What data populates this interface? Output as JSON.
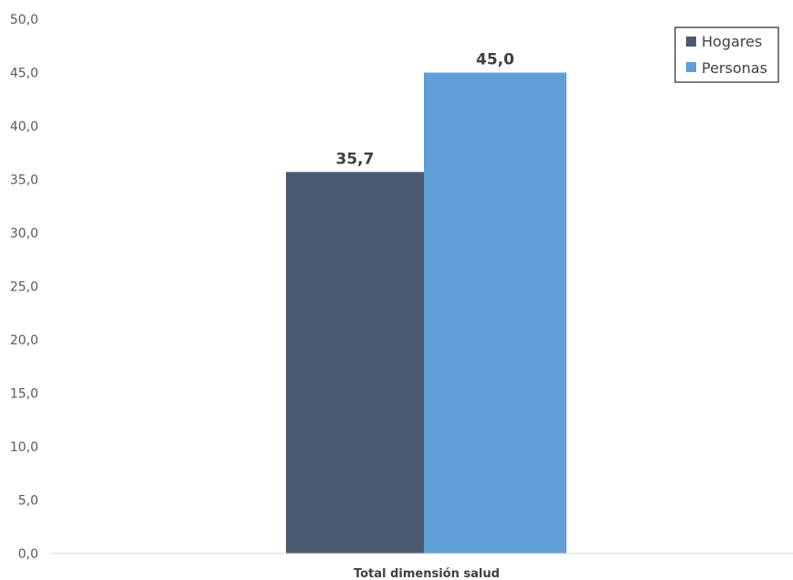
{
  "chart_data": {
    "type": "bar",
    "categories": [
      "Total dimensión salud"
    ],
    "series": [
      {
        "name": "Hogares",
        "values": [
          35.7
        ],
        "labels": [
          "35,7"
        ],
        "color": "#4a5a71"
      },
      {
        "name": "Personas",
        "values": [
          45.0
        ],
        "labels": [
          "45,0"
        ],
        "color": "#5f9ed6"
      }
    ],
    "ylim": [
      0,
      50
    ],
    "yticks": [
      "0,0",
      "5,0",
      "10,0",
      "15,0",
      "20,0",
      "25,0",
      "30,0",
      "35,0",
      "40,0",
      "45,0",
      "50,0"
    ],
    "legend": "top-right",
    "grid": false,
    "title": "",
    "xlabel": "",
    "ylabel": ""
  }
}
